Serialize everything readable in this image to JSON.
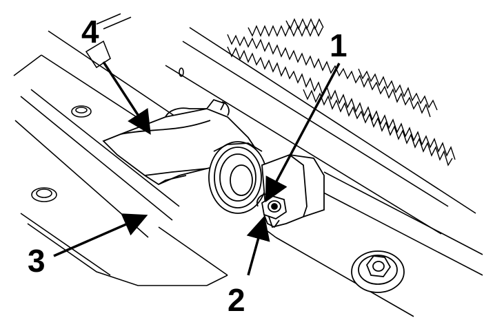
{
  "figure": {
    "callouts": [
      {
        "id": "1",
        "label": "1"
      },
      {
        "id": "2",
        "label": "2"
      },
      {
        "id": "3",
        "label": "3"
      },
      {
        "id": "4",
        "label": "4"
      }
    ],
    "colors": {
      "ink": "#000000",
      "paper": "#ffffff"
    }
  }
}
